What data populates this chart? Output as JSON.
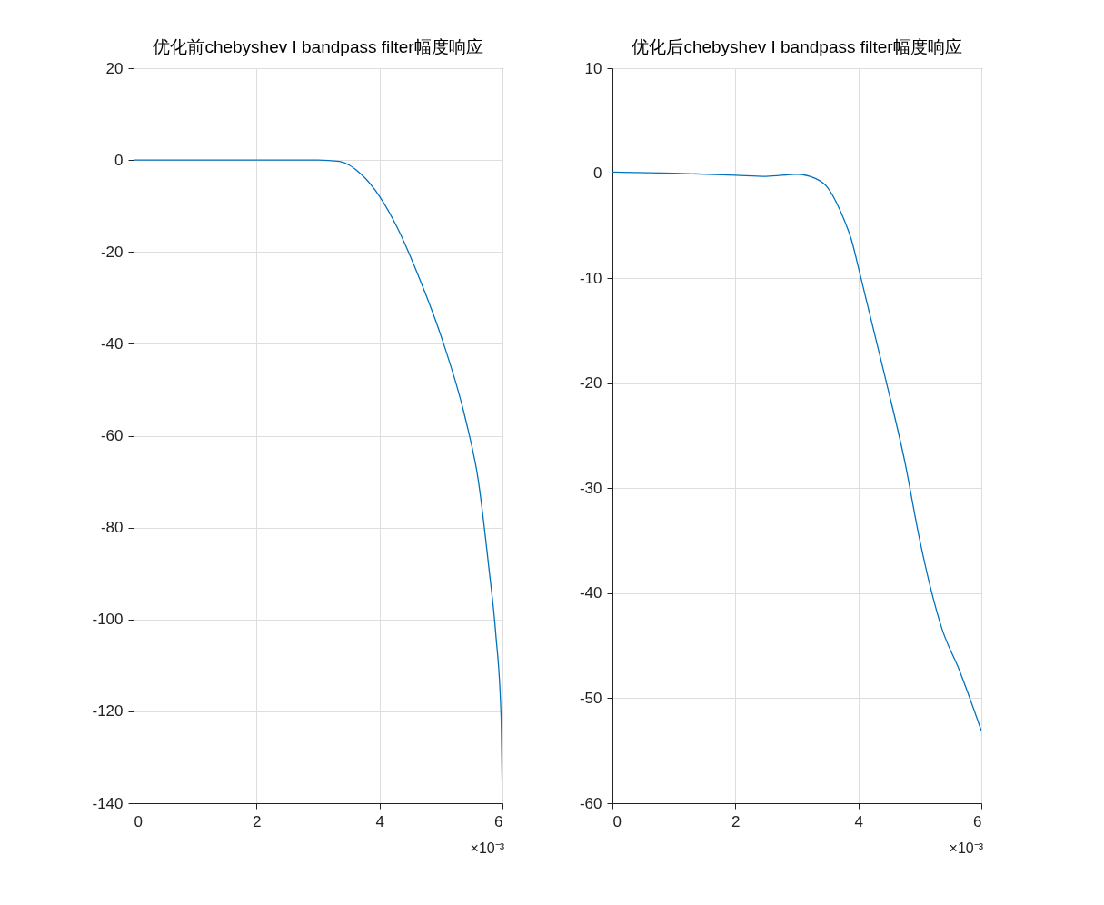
{
  "chart_data": [
    {
      "type": "line",
      "title": "优化前chebyshev I bandpass filter幅度响应",
      "x": [
        0,
        1,
        2,
        2.5,
        3,
        3.35,
        3.71,
        4,
        4.3,
        4.62,
        5.04,
        5.39,
        5.61,
        5.78,
        5.89,
        5.98,
        6
      ],
      "series": [
        {
          "color": "#0072bd",
          "values": [
            0,
            0,
            0,
            0,
            0,
            -0.3,
            -3.2,
            -7.9,
            -15,
            -24.8,
            -39.9,
            -55.9,
            -70,
            -88.9,
            -103,
            -122,
            -140
          ]
        }
      ],
      "xlim": [
        0,
        6
      ],
      "xticks": [
        0,
        2,
        4,
        6
      ],
      "ylim": [
        -140,
        20
      ],
      "yticks": [
        -140,
        -120,
        -100,
        -80,
        -60,
        -40,
        -20,
        0,
        20
      ],
      "grid": true,
      "annotations": [
        "×10⁻³"
      ]
    },
    {
      "type": "line",
      "title": "优化后chebyshev I bandpass filter幅度响应",
      "x": [
        0,
        1,
        2,
        2.5,
        3,
        3.3,
        3.49,
        3.7,
        3.89,
        4.03,
        4.43,
        4.76,
        4.99,
        5.17,
        5.36,
        5.64,
        6
      ],
      "series": [
        {
          "color": "#0072bd",
          "values": [
            0.1,
            0,
            -0.2,
            -0.3,
            -0.1,
            -0.5,
            -1.3,
            -3.5,
            -6.4,
            -9.7,
            -19.3,
            -27.6,
            -34.7,
            -39.4,
            -43.4,
            -47.3,
            -53.1
          ]
        }
      ],
      "xlim": [
        0,
        6
      ],
      "xticks": [
        0,
        2,
        4,
        6
      ],
      "ylim": [
        -60,
        10
      ],
      "yticks": [
        -60,
        -50,
        -40,
        -30,
        -20,
        -10,
        0,
        10
      ],
      "grid": true,
      "annotations": [
        "×10⁻³"
      ]
    }
  ]
}
